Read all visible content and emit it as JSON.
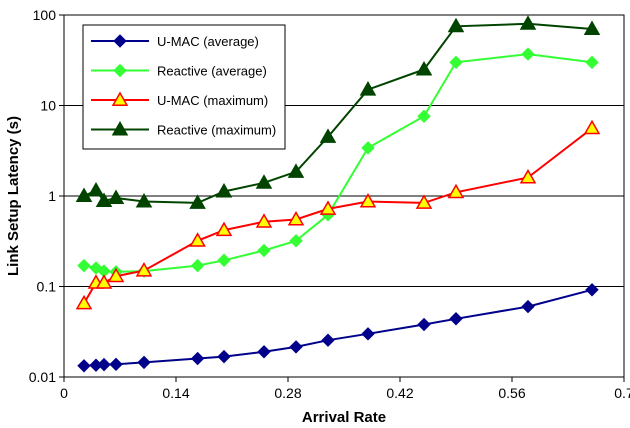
{
  "chart_data": {
    "type": "line",
    "xlabel": "Arrival Rate",
    "ylabel": "Link Setup Latency (s)",
    "xlim": [
      0,
      0.7
    ],
    "ylim": [
      0.01,
      100
    ],
    "yscale": "log",
    "x_ticks": [
      0,
      0.14,
      0.28,
      0.42,
      0.56,
      0.7
    ],
    "x_tick_labels": [
      "0",
      "0.14",
      "0.28",
      "0.42",
      "0.56",
      "0.7"
    ],
    "y_ticks": [
      0.01,
      0.1,
      1,
      10,
      100
    ],
    "y_tick_labels": [
      "0.01",
      "0.1",
      "1",
      "10",
      "100"
    ],
    "grid": "horizontal",
    "legend_position": "top-left",
    "series": [
      {
        "name": "U-MAC (average)",
        "color": "#00008B",
        "marker": "diamond",
        "x": [
          0.025,
          0.04,
          0.05,
          0.065,
          0.1,
          0.167,
          0.2,
          0.25,
          0.29,
          0.33,
          0.38,
          0.45,
          0.49,
          0.58,
          0.66
        ],
        "y": [
          0.0133,
          0.0135,
          0.0137,
          0.0138,
          0.0145,
          0.016,
          0.0168,
          0.019,
          0.0215,
          0.0255,
          0.03,
          0.038,
          0.044,
          0.06,
          0.092
        ]
      },
      {
        "name": "Reactive (average)",
        "color": "#33FF33",
        "marker": "diamond",
        "x": [
          0.025,
          0.04,
          0.05,
          0.065,
          0.1,
          0.167,
          0.2,
          0.25,
          0.29,
          0.33,
          0.38,
          0.45,
          0.49,
          0.58,
          0.66
        ],
        "y": [
          0.17,
          0.16,
          0.148,
          0.145,
          0.148,
          0.17,
          0.195,
          0.25,
          0.32,
          0.62,
          3.4,
          7.6,
          30,
          37,
          30
        ]
      },
      {
        "name": "U-MAC (maximum)",
        "color": "#FF0000",
        "marker": "triangle",
        "x": [
          0.025,
          0.04,
          0.05,
          0.065,
          0.1,
          0.167,
          0.2,
          0.25,
          0.29,
          0.33,
          0.38,
          0.45,
          0.49,
          0.58,
          0.66
        ],
        "y": [
          0.065,
          0.11,
          0.11,
          0.13,
          0.15,
          0.32,
          0.42,
          0.52,
          0.55,
          0.72,
          0.87,
          0.84,
          1.1,
          1.6,
          5.6
        ]
      },
      {
        "name": "Reactive (maximum)",
        "color": "#004400",
        "marker": "triangle",
        "x": [
          0.025,
          0.04,
          0.05,
          0.065,
          0.1,
          0.167,
          0.2,
          0.25,
          0.29,
          0.33,
          0.38,
          0.45,
          0.49,
          0.58,
          0.66
        ],
        "y": [
          1.0,
          1.15,
          0.88,
          0.95,
          0.87,
          0.84,
          1.12,
          1.4,
          1.85,
          4.5,
          15,
          25,
          75,
          80,
          70
        ]
      }
    ]
  }
}
